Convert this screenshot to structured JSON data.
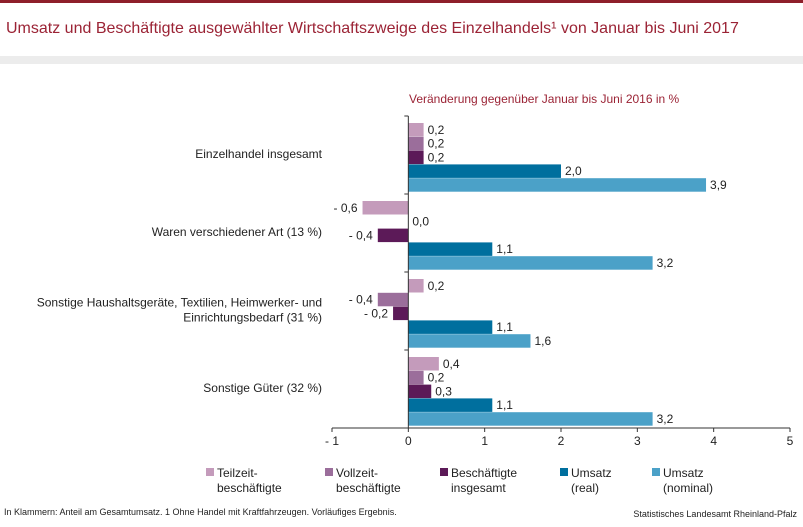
{
  "header": {
    "title": "Umsatz und Beschäftigte ausgewählter Wirtschaftszweige des Einzelhandels¹ von Januar bis Juni 2017"
  },
  "chart_data": {
    "type": "bar",
    "orientation": "horizontal",
    "subtitle": "Veränderung gegenüber  Januar bis Juni 2016 in %",
    "categories": [
      [
        "Einzelhandel insgesamt"
      ],
      [
        "Waren verschiedener Art (13 %)"
      ],
      [
        "Sonstige Haushaltsgeräte, Textilien, Heimwerker- und",
        "Einrichtungsbedarf (31 %)"
      ],
      [
        "Sonstige Güter (32 %)"
      ]
    ],
    "series": [
      {
        "name": "Teilzeit-\nbeschäftigte",
        "color": "#c49bbb",
        "values": [
          0.2,
          -0.6,
          0.2,
          0.4
        ],
        "labels": [
          "0,2",
          "- 0,6",
          "0,2",
          "0,4"
        ]
      },
      {
        "name": "Vollzeit-\nbeschäftigte",
        "color": "#9b6e9b",
        "values": [
          0.2,
          0.0,
          -0.4,
          0.2
        ],
        "labels": [
          "0,2",
          "0,0",
          "- 0,4",
          "0,2"
        ]
      },
      {
        "name": "Beschäftigte\ninsgesamt",
        "color": "#5c1a58",
        "values": [
          0.2,
          -0.4,
          -0.2,
          0.3
        ],
        "labels": [
          "0,2",
          "- 0,4",
          "- 0,2",
          "0,3"
        ]
      },
      {
        "name": "Umsatz\n(real)",
        "color": "#006f9e",
        "values": [
          2.0,
          1.1,
          1.1,
          1.1
        ],
        "labels": [
          "2,0",
          "1,1",
          "1,1",
          "1,1"
        ]
      },
      {
        "name": "Umsatz\n(nominal)",
        "color": "#4ba1c8",
        "values": [
          3.9,
          3.2,
          1.6,
          3.2
        ],
        "labels": [
          "3,9",
          "3,2",
          "1,6",
          "3,2"
        ]
      }
    ],
    "xlim": [
      -1,
      5
    ],
    "xticks": [
      -1,
      0,
      1,
      2,
      3,
      4,
      5
    ],
    "xtick_labels": [
      "- 1",
      "0",
      "1",
      "2",
      "3",
      "4",
      "5"
    ],
    "legend_position": "bottom"
  },
  "footer": {
    "note": "In Klammern: Anteil am Gesamtumsatz. 1 Ohne Handel mit Kraftfahrzeugen. Vorläufiges Ergebnis.",
    "source": "Statistisches Landesamt Rheinland-Pfalz"
  }
}
